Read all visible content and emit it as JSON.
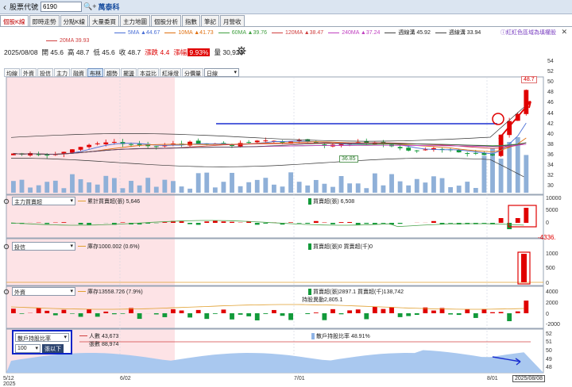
{
  "topbar": {
    "back": "‹",
    "code_label": "股票代號",
    "code_value": "6190",
    "tools": "🔍+",
    "stock_name": "萬泰科"
  },
  "tabs": [
    "個股K線",
    "即時走勢",
    "分點K線",
    "大量委買",
    "主力地圖",
    "個股分析",
    "指數",
    "筆記",
    "月營收"
  ],
  "ma_legend": [
    {
      "label": "5MA ▲44.67",
      "color": "#4a6fd6"
    },
    {
      "label": "10MA ▲41.73",
      "color": "#e07010"
    },
    {
      "label": "60MA ▲39.76",
      "color": "#40a040"
    },
    {
      "label": "120MA ▲38.47",
      "color": "#d04040"
    },
    {
      "label": "240MA ▲37.24",
      "color": "#c040c0"
    },
    {
      "label": "週線溝 45.92",
      "color": "#444444"
    },
    {
      "label": "週線溝 33.94",
      "color": "#444444"
    }
  ],
  "ma_legend2": {
    "label": "20MA 39.93",
    "color": "#d04040"
  },
  "hint_link": "ⓘ紅紅色區域為填權股",
  "ohlc": {
    "date": "2025/08/08",
    "open": "開 45.6",
    "high": "高 48.7",
    "low": "低 45.6",
    "close": "收 48.7",
    "change": "漲跌 4.4",
    "change_pct_label": "漲幅",
    "pct": "9.93%",
    "volume": "量 30,923"
  },
  "indicator_tabs": [
    "均線",
    "外資",
    "投信",
    "主力",
    "融資",
    "布林",
    "趨勢",
    "擺盪",
    "本益比",
    "紅綠燈",
    "分價量"
  ],
  "indicator_active": "布林",
  "period_select": "日線",
  "price_axis": [
    "54",
    "52",
    "50",
    "48",
    "46",
    "44",
    "42",
    "40",
    "38",
    "36",
    "34",
    "32",
    "30"
  ],
  "price_labels": {
    "high": "48.7",
    "low": "36.85"
  },
  "panels": {
    "main_force": {
      "select": "主力買賣超",
      "legend_line": "累計買賣超(張) 5,646",
      "legend_bar": "買賣超(張) 6,508",
      "axis": [
        "10000",
        "5000",
        "0"
      ],
      "note": "-4336."
    },
    "trust": {
      "select": "投信",
      "legend_line": "庫存1000.002 (0.6%)",
      "legend_bar": "買賣超(張)0 買賣超(千)0",
      "axis": [
        "1000",
        "500",
        "0"
      ]
    },
    "foreign": {
      "select": "外資",
      "legend_line": "庫存13558.726 (7.9%)",
      "legend_bar": "買賣超(張)2897.1 買賣超(千)138,742",
      "legend_bar2": "持股異動2,805.1",
      "axis": [
        "4000",
        "2000",
        "0",
        "-2000"
      ]
    },
    "holders": {
      "select": "散戶持股比率",
      "legend_line": "人數 43,673",
      "legend_line2": "張數 88,974",
      "legend_bar": "散戶持股比率 48.91%",
      "axis": [
        "52",
        "51",
        "50",
        "49",
        "48"
      ],
      "threshold": "100",
      "threshold_btn": "張以下"
    }
  },
  "dates": {
    "d1": "5/12",
    "d1_year": "2025",
    "d2": "6/02",
    "d3": "7/01",
    "d4": "8/01",
    "d5": "2025/08/08"
  },
  "colors": {
    "up": "#e00000",
    "down": "#129a3a",
    "shade": "#fde3e6",
    "accent": "#1a4fa0"
  }
}
